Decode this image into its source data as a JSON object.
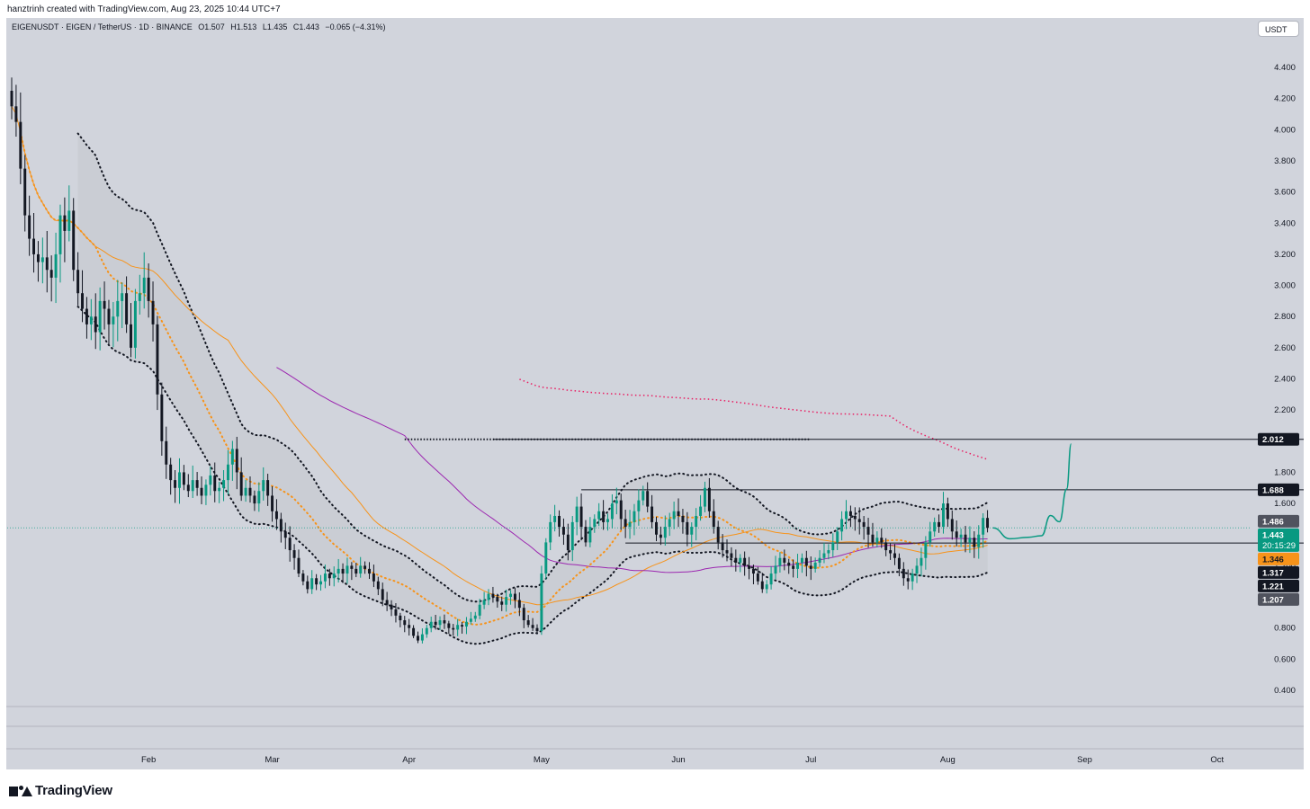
{
  "header": {
    "credit": "hanztrinh created with TradingView.com, Aug 23, 2025 10:44 UTC+7"
  },
  "legend": {
    "symbol": "EIGENUSDT · EIGEN / TetherUS · 1D · BINANCE",
    "open": "O1.507",
    "high": "H1.513",
    "low": "L1.435",
    "close": "C1.443",
    "change": "−0.065 (−4.31%)"
  },
  "unit_button": "USDT",
  "footer": {
    "brand": "TradingView"
  },
  "colors": {
    "up": "#089981",
    "down": "#131722",
    "ma_orange": "#f7931a",
    "ma_purple": "#9c27b0",
    "ma_red": "#e91e63",
    "fill_band": "#c4c6ce",
    "target_path": "#089981"
  },
  "chart_data": {
    "type": "candlestick",
    "symbol": "EIGENUSDT",
    "timeframe": "1D",
    "y_axis": {
      "ticks": [
        "4.400",
        "4.200",
        "4.000",
        "3.800",
        "3.600",
        "3.400",
        "3.200",
        "3.000",
        "2.800",
        "2.600",
        "2.400",
        "2.200",
        "2.000",
        "1.800",
        "1.600",
        "1.400",
        "1.200",
        "1.000",
        "0.800",
        "0.600",
        "0.400"
      ],
      "ylim": [
        0.4,
        4.4
      ]
    },
    "x_axis": {
      "start_date": "2025-01-01",
      "end_date": "2025-10-09",
      "labels": [
        {
          "text": "Feb",
          "date": "2025-02-01"
        },
        {
          "text": "Mar",
          "date": "2025-03-01"
        },
        {
          "text": "Apr",
          "date": "2025-04-01"
        },
        {
          "text": "May",
          "date": "2025-05-01"
        },
        {
          "text": "Jun",
          "date": "2025-06-01"
        },
        {
          "text": "Jul",
          "date": "2025-07-01"
        },
        {
          "text": "Aug",
          "date": "2025-08-01"
        },
        {
          "text": "Sep",
          "date": "2025-09-01"
        },
        {
          "text": "Oct",
          "date": "2025-10-01"
        }
      ]
    },
    "candle_close_series": {
      "start_date": "2025-01-01",
      "closes": [
        4.15,
        4.05,
        3.75,
        3.45,
        3.3,
        3.2,
        3.15,
        3.18,
        3.1,
        3.05,
        3.2,
        3.45,
        3.35,
        3.48,
        3.1,
        2.95,
        2.85,
        2.75,
        2.8,
        2.7,
        2.9,
        2.85,
        2.75,
        2.8,
        2.9,
        2.95,
        2.75,
        2.6,
        2.9,
        2.95,
        3.05,
        2.9,
        2.75,
        2.3,
        2.0,
        1.85,
        1.75,
        1.7,
        1.8,
        1.72,
        1.68,
        1.75,
        1.7,
        1.65,
        1.72,
        1.78,
        1.68,
        1.7,
        1.75,
        1.85,
        1.95,
        1.8,
        1.65,
        1.7,
        1.65,
        1.6,
        1.68,
        1.75,
        1.65,
        1.55,
        1.5,
        1.42,
        1.38,
        1.3,
        1.25,
        1.15,
        1.1,
        1.05,
        1.12,
        1.08,
        1.1,
        1.15,
        1.12,
        1.15,
        1.18,
        1.15,
        1.2,
        1.18,
        1.15,
        1.2,
        1.18,
        1.15,
        1.1,
        1.05,
        0.98,
        0.95,
        0.92,
        0.88,
        0.85,
        0.82,
        0.8,
        0.75,
        0.72,
        0.76,
        0.8,
        0.84,
        0.82,
        0.85,
        0.83,
        0.8,
        0.79,
        0.82,
        0.81,
        0.84,
        0.86,
        0.88,
        0.95,
        0.98,
        1.02,
        1.0,
        0.97,
        0.95,
        1.0,
        1.02,
        0.98,
        0.93,
        0.85,
        0.82,
        0.8,
        0.78,
        1.15,
        1.35,
        1.48,
        1.52,
        1.45,
        1.4,
        1.3,
        1.48,
        1.58,
        1.45,
        1.35,
        1.45,
        1.5,
        1.55,
        1.48,
        1.5,
        1.6,
        1.62,
        1.5,
        1.45,
        1.48,
        1.55,
        1.62,
        1.68,
        1.58,
        1.48,
        1.4,
        1.38,
        1.45,
        1.5,
        1.55,
        1.52,
        1.48,
        1.4,
        1.45,
        1.52,
        1.58,
        1.7,
        1.55,
        1.45,
        1.35,
        1.3,
        1.28,
        1.25,
        1.22,
        1.25,
        1.2,
        1.18,
        1.15,
        1.1,
        1.05,
        1.08,
        1.15,
        1.2,
        1.25,
        1.22,
        1.2,
        1.18,
        1.22,
        1.25,
        1.2,
        1.18,
        1.22,
        1.25,
        1.28,
        1.3,
        1.35,
        1.42,
        1.5,
        1.55,
        1.52,
        1.5,
        1.48,
        1.45,
        1.4,
        1.35,
        1.38,
        1.35,
        1.3,
        1.28,
        1.25,
        1.18,
        1.12,
        1.1,
        1.15,
        1.2,
        1.25,
        1.35,
        1.42,
        1.48,
        1.45,
        1.6,
        1.5,
        1.42,
        1.38,
        1.4,
        1.35,
        1.38,
        1.32,
        1.4,
        1.507,
        1.443
      ]
    },
    "price_labels": [
      {
        "label": "2.012",
        "price": 2.012,
        "style": "black"
      },
      {
        "label": "1.688",
        "price": 1.688,
        "style": "black"
      },
      {
        "label": "1.486",
        "price": 1.486,
        "style": "gray"
      },
      {
        "label": "1.443",
        "price": 1.443,
        "style": "green",
        "sub": "20:15:29"
      },
      {
        "label": "1.346",
        "price": 1.346,
        "style": "orange"
      },
      {
        "label": "1.317",
        "price": 1.317,
        "style": "black"
      },
      {
        "label": "1.221",
        "price": 1.221,
        "style": "black"
      },
      {
        "label": "1.207",
        "price": 1.207,
        "style": "gray"
      }
    ],
    "horizontal_lines": [
      {
        "price": 2.012,
        "start_date": "2025-04-20"
      },
      {
        "price": 1.688,
        "start_date": "2025-05-10"
      },
      {
        "price": 1.346,
        "start_date": "2025-05-20"
      }
    ],
    "dotted_level": {
      "price": 2.012,
      "start_date": "2025-03-31",
      "end_date": "2025-07-01"
    },
    "grid": false,
    "legend_position": "top-left"
  }
}
